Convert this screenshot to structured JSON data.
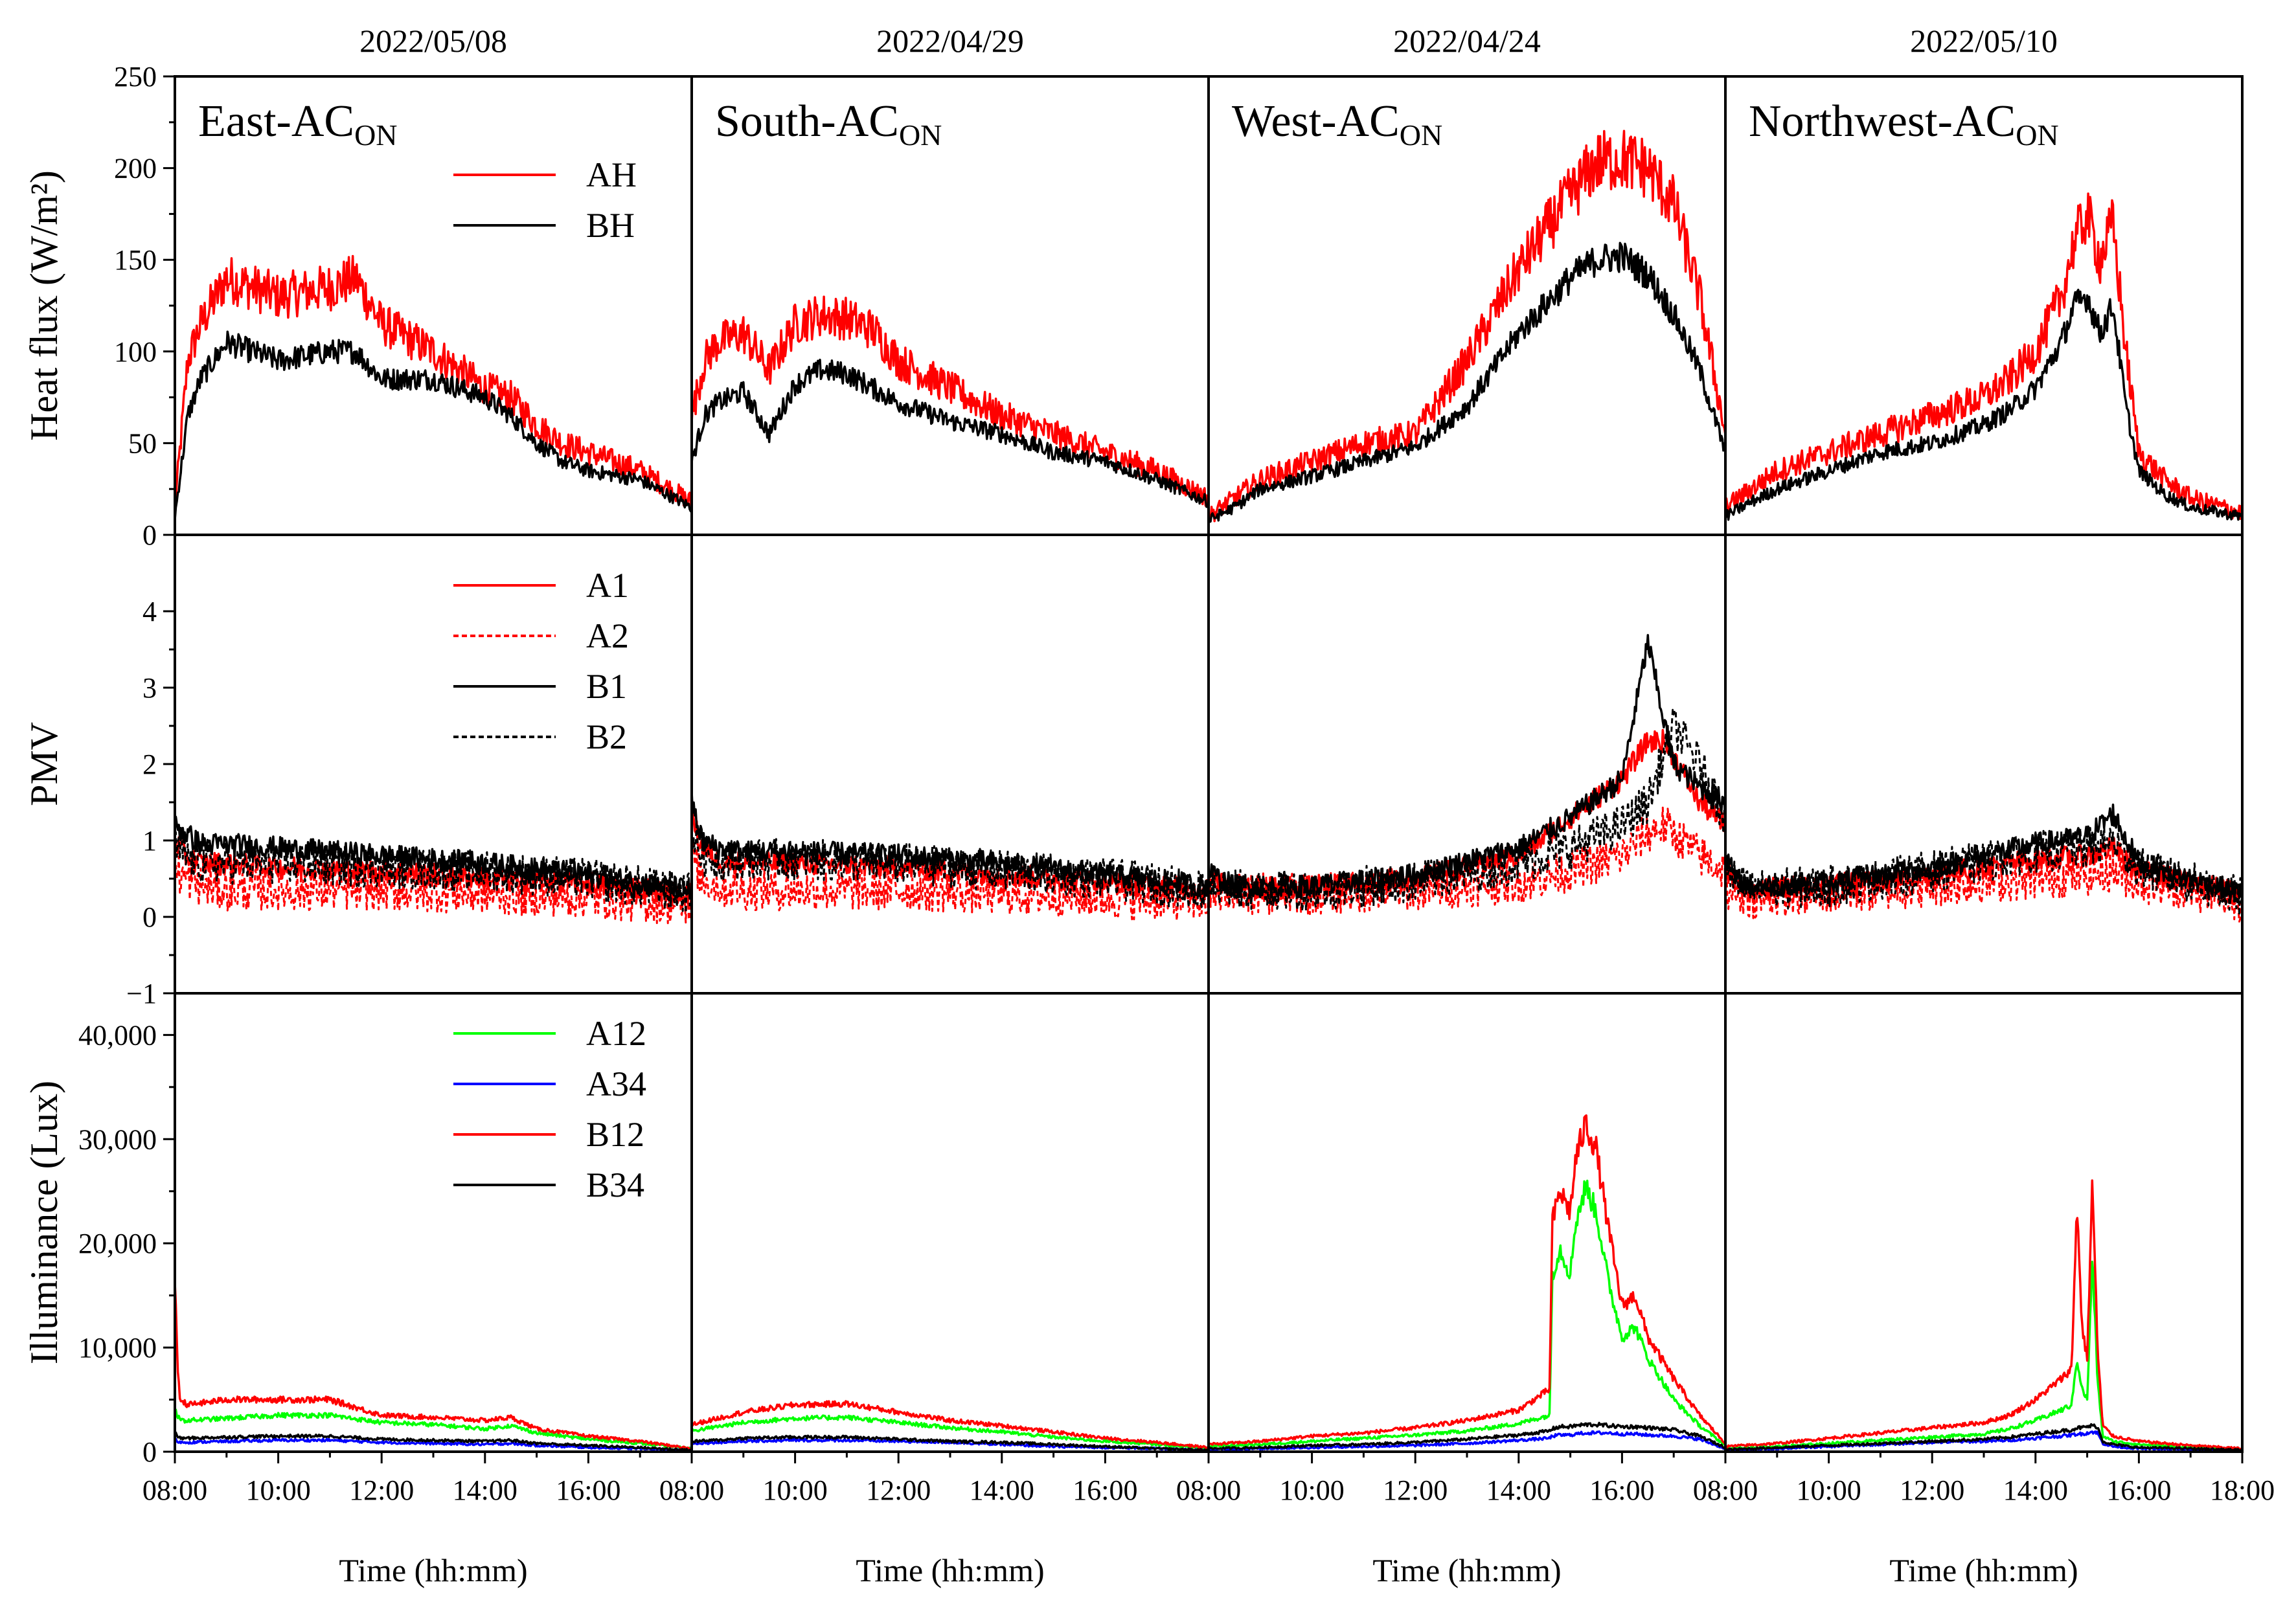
{
  "chart_data": {
    "type": "line",
    "columns": [
      {
        "date": "2022/05/08",
        "label_main": "East-AC",
        "label_sub": "ON"
      },
      {
        "date": "2022/04/29",
        "label_main": "South-AC",
        "label_sub": "ON"
      },
      {
        "date": "2022/04/24",
        "label_main": "West-AC",
        "label_sub": "ON"
      },
      {
        "date": "2022/05/10",
        "label_main": "Northwest-AC",
        "label_sub": "ON"
      }
    ],
    "xlabel": "Time (hh:mm)",
    "x_range_hours": [
      8,
      18
    ],
    "x_ticks": [
      "08:00",
      "10:00",
      "12:00",
      "14:00",
      "16:00"
    ],
    "x_last_tick": "18:00",
    "rows": [
      {
        "id": "heat_flux",
        "ylabel": "Heat flux (W/m²)",
        "ylim": [
          0,
          250
        ],
        "y_ticks": [
          0,
          50,
          100,
          150,
          200,
          250
        ],
        "y_tick_labels": [
          "0",
          "50",
          "100",
          "150",
          "200",
          "250"
        ],
        "legend": [
          {
            "name": "AH",
            "color": "#ff0000",
            "dash": "solid"
          },
          {
            "name": "BH",
            "color": "#000000",
            "dash": "solid"
          }
        ],
        "data": [
          {
            "x": [
              8.0,
              8.25,
              8.5,
              9.0,
              9.5,
              10.0,
              11.0,
              11.5,
              12.0,
              13.0,
              14.0,
              14.5,
              15.0,
              15.5,
              16.0,
              17.0,
              18.0
            ],
            "AH": [
              15,
              95,
              115,
              140,
              135,
              130,
              135,
              140,
              115,
              100,
              80,
              75,
              60,
              50,
              45,
              35,
              18
            ],
            "BH": [
              10,
              65,
              85,
              105,
              100,
              95,
              100,
              100,
              85,
              85,
              75,
              65,
              50,
              40,
              35,
              30,
              15
            ]
          },
          {
            "x": [
              8.0,
              8.25,
              8.5,
              9.0,
              9.5,
              10.0,
              10.5,
              11.0,
              11.5,
              12.0,
              13.0,
              14.0,
              15.0,
              16.0,
              17.0,
              18.0
            ],
            "AH": [
              65,
              95,
              105,
              110,
              90,
              115,
              120,
              118,
              112,
              95,
              80,
              65,
              55,
              45,
              35,
              20
            ],
            "BH": [
              40,
              65,
              72,
              78,
              55,
              82,
              90,
              88,
              80,
              72,
              62,
              55,
              45,
              40,
              30,
              18
            ]
          },
          {
            "x": [
              8.0,
              8.5,
              9.0,
              10.0,
              11.0,
              12.0,
              13.0,
              14.0,
              15.0,
              15.5,
              16.0,
              16.5,
              17.0,
              17.5,
              18.0
            ],
            "AH": [
              10,
              20,
              30,
              40,
              50,
              55,
              95,
              145,
              185,
              203,
              205,
              200,
              180,
              130,
              55
            ],
            "BH": [
              8,
              15,
              25,
              32,
              40,
              48,
              70,
              110,
              140,
              150,
              152,
              142,
              120,
              90,
              45
            ]
          },
          {
            "x": [
              8.0,
              8.5,
              9.0,
              10.0,
              11.0,
              12.0,
              13.0,
              13.5,
              14.0,
              14.5,
              14.75,
              15.0,
              15.25,
              15.5,
              15.75,
              16.0,
              16.5,
              17.0,
              18.0
            ],
            "AH": [
              15,
              25,
              35,
              45,
              55,
              65,
              75,
              85,
              100,
              130,
              160,
              175,
              150,
              170,
              100,
              45,
              30,
              20,
              12
            ],
            "BH": [
              10,
              18,
              25,
              35,
              45,
              50,
              60,
              68,
              80,
              105,
              125,
              130,
              110,
              125,
              70,
              35,
              22,
              15,
              10
            ]
          }
        ]
      },
      {
        "id": "pmv",
        "ylabel": "PMV",
        "ylim": [
          -1,
          5
        ],
        "y_ticks": [
          -1,
          0,
          1,
          2,
          3,
          4
        ],
        "y_tick_labels": [
          "−1",
          "0",
          "1",
          "2",
          "3",
          "4"
        ],
        "legend": [
          {
            "name": "A1",
            "color": "#ff0000",
            "dash": "solid"
          },
          {
            "name": "A2",
            "color": "#ff0000",
            "dash": "dotted"
          },
          {
            "name": "B1",
            "color": "#000000",
            "dash": "solid"
          },
          {
            "name": "B2",
            "color": "#000000",
            "dash": "dotted"
          }
        ],
        "data": [
          {
            "x": [
              8.0,
              8.2,
              8.5,
              9.0,
              10.0,
              12.0,
              14.0,
              16.0,
              18.0
            ],
            "A1": [
              1.0,
              0.8,
              0.7,
              0.7,
              0.65,
              0.6,
              0.5,
              0.45,
              0.3
            ],
            "A2": [
              0.6,
              0.5,
              0.4,
              0.35,
              0.35,
              0.35,
              0.3,
              0.25,
              0.15
            ],
            "B1": [
              1.2,
              1.1,
              0.95,
              0.95,
              0.9,
              0.8,
              0.7,
              0.55,
              0.35
            ],
            "B2": [
              0.9,
              0.8,
              0.7,
              0.7,
              0.7,
              0.65,
              0.6,
              0.5,
              0.3
            ]
          },
          {
            "x": [
              8.0,
              8.2,
              8.5,
              9.0,
              10.0,
              12.0,
              14.0,
              16.0,
              18.0
            ],
            "A1": [
              1.3,
              0.9,
              0.75,
              0.7,
              0.7,
              0.65,
              0.55,
              0.45,
              0.35
            ],
            "A2": [
              0.8,
              0.5,
              0.4,
              0.35,
              0.35,
              0.35,
              0.3,
              0.25,
              0.2
            ],
            "B1": [
              1.5,
              1.0,
              0.9,
              0.85,
              0.85,
              0.8,
              0.7,
              0.55,
              0.4
            ],
            "B2": [
              1.1,
              0.8,
              0.75,
              0.75,
              0.75,
              0.7,
              0.6,
              0.5,
              0.35
            ]
          },
          {
            "x": [
              8.0,
              8.2,
              8.5,
              10.0,
              12.0,
              14.0,
              15.0,
              16.0,
              16.5,
              16.8,
              17.0,
              17.5,
              18.0
            ],
            "A1": [
              0.5,
              0.45,
              0.35,
              0.4,
              0.5,
              0.8,
              1.3,
              1.8,
              2.3,
              2.3,
              2.1,
              1.5,
              1.2
            ],
            "A2": [
              0.4,
              0.35,
              0.3,
              0.3,
              0.35,
              0.45,
              0.6,
              0.8,
              1.1,
              1.2,
              1.1,
              0.8,
              0.6
            ],
            "B1": [
              0.6,
              0.5,
              0.4,
              0.4,
              0.55,
              0.9,
              1.3,
              1.8,
              3.6,
              2.6,
              2.0,
              1.7,
              1.5
            ],
            "B2": [
              0.5,
              0.4,
              0.35,
              0.35,
              0.45,
              0.7,
              0.9,
              1.2,
              1.5,
              2.1,
              2.5,
              2.0,
              1.3
            ]
          },
          {
            "x": [
              8.0,
              8.2,
              8.5,
              10.0,
              12.0,
              14.0,
              15.0,
              15.5,
              16.0,
              17.0,
              18.0
            ],
            "A1": [
              0.6,
              0.4,
              0.35,
              0.4,
              0.55,
              0.75,
              0.8,
              0.9,
              0.6,
              0.45,
              0.3
            ],
            "A2": [
              0.4,
              0.3,
              0.25,
              0.3,
              0.4,
              0.5,
              0.55,
              0.6,
              0.45,
              0.35,
              0.2
            ],
            "B1": [
              0.8,
              0.5,
              0.4,
              0.45,
              0.65,
              0.95,
              1.05,
              1.35,
              0.7,
              0.5,
              0.3
            ],
            "B2": [
              0.7,
              0.45,
              0.35,
              0.4,
              0.6,
              0.85,
              0.9,
              1.0,
              0.65,
              0.45,
              0.25
            ]
          }
        ]
      },
      {
        "id": "illuminance",
        "ylabel": "Illuminance (Lux)",
        "ylim": [
          0,
          44000
        ],
        "y_ticks": [
          0,
          10000,
          20000,
          30000,
          40000
        ],
        "y_tick_labels": [
          "0",
          "10,000",
          "20,000",
          "30,000",
          "40,000"
        ],
        "legend": [
          {
            "name": "A12",
            "color": "#00ff00",
            "dash": "solid"
          },
          {
            "name": "A34",
            "color": "#0000ff",
            "dash": "solid"
          },
          {
            "name": "B12",
            "color": "#ff0000",
            "dash": "solid"
          },
          {
            "name": "B34",
            "color": "#000000",
            "dash": "solid"
          }
        ],
        "data": [
          {
            "x": [
              8.0,
              8.05,
              8.1,
              8.25,
              9.0,
              10.0,
              11.0,
              12.0,
              13.0,
              14.0,
              14.5,
              15.0,
              16.0,
              17.0,
              18.0
            ],
            "A12": [
              4000,
              3500,
              3000,
              3000,
              3200,
              3500,
              3500,
              2800,
              2600,
              2200,
              2500,
              1800,
              1200,
              800,
              300
            ],
            "A34": [
              1200,
              1000,
              900,
              900,
              1000,
              1100,
              1100,
              900,
              800,
              700,
              800,
              600,
              400,
              300,
              100
            ],
            "B12": [
              17000,
              8000,
              5000,
              4500,
              5000,
              5000,
              5000,
              3500,
              3300,
              3000,
              3300,
              2200,
              1500,
              1000,
              300
            ],
            "B34": [
              1800,
              1500,
              1300,
              1300,
              1400,
              1500,
              1500,
              1200,
              1100,
              1000,
              1100,
              800,
              600,
              400,
              150
            ]
          },
          {
            "x": [
              8.0,
              8.5,
              9.0,
              10.0,
              11.0,
              12.0,
              13.0,
              14.0,
              15.0,
              16.0,
              17.0,
              18.0
            ],
            "A12": [
              2000,
              2400,
              2800,
              3200,
              3300,
              2800,
              2300,
              1900,
              1400,
              1000,
              700,
              300
            ],
            "A34": [
              800,
              900,
              1000,
              1100,
              1100,
              1000,
              900,
              700,
              500,
              400,
              300,
              100
            ],
            "B12": [
              2600,
              3200,
              3800,
              4500,
              4600,
              3800,
              3000,
              2500,
              1900,
              1300,
              900,
              400
            ],
            "B34": [
              1000,
              1100,
              1300,
              1400,
              1400,
              1200,
              1000,
              900,
              700,
              500,
              300,
              150
            ]
          },
          {
            "x": [
              8.0,
              9.0,
              10.0,
              11.0,
              12.0,
              13.0,
              14.0,
              14.6,
              14.65,
              14.8,
              15.0,
              15.1,
              15.3,
              15.5,
              15.75,
              16.0,
              16.25,
              16.5,
              17.0,
              17.5,
              18.0
            ],
            "A12": [
              500,
              700,
              1000,
              1300,
              1600,
              2000,
              2700,
              3500,
              17000,
              19500,
              17000,
              22000,
              25500,
              23000,
              16000,
              11000,
              12000,
              9000,
              5000,
              2500,
              600
            ],
            "A34": [
              200,
              300,
              400,
              500,
              600,
              800,
              1100,
              1300,
              1500,
              1600,
              1600,
              1700,
              1800,
              1800,
              1800,
              1700,
              1700,
              1600,
              1500,
              1200,
              300
            ],
            "B12": [
              700,
              1000,
              1500,
              1800,
              2300,
              3000,
              4000,
              6000,
              22000,
              25000,
              23000,
              28000,
              31500,
              29000,
              21000,
              14000,
              15000,
              11000,
              7000,
              3500,
              800
            ],
            "B34": [
              300,
              400,
              600,
              700,
              900,
              1200,
              1600,
              2000,
              2200,
              2400,
              2400,
              2500,
              2600,
              2600,
              2500,
              2400,
              2400,
              2300,
              2100,
              1500,
              400
            ]
          },
          {
            "x": [
              8.0,
              9.0,
              10.0,
              11.0,
              12.0,
              13.0,
              13.5,
              14.0,
              14.5,
              14.7,
              14.8,
              14.9,
              15.0,
              15.1,
              15.2,
              15.3,
              15.5,
              16.0,
              17.0,
              18.0
            ],
            "A12": [
              300,
              500,
              800,
              1100,
              1400,
              1700,
              2200,
              3000,
              4000,
              4500,
              9000,
              6000,
              5000,
              18500,
              7000,
              1500,
              1000,
              700,
              400,
              200
            ],
            "A34": [
              150,
              300,
              500,
              700,
              900,
              1000,
              1100,
              1300,
              1500,
              1600,
              1700,
              1700,
              1800,
              1900,
              1800,
              800,
              500,
              300,
              200,
              100
            ],
            "B12": [
              500,
              800,
              1300,
              1800,
              2300,
              2800,
              3500,
              5000,
              7000,
              8000,
              24000,
              12000,
              9000,
              26000,
              10000,
              2500,
              1500,
              1000,
              600,
              300
            ],
            "B34": [
              200,
              400,
              600,
              800,
              1000,
              1200,
              1400,
              1700,
              2000,
              2100,
              2300,
              2300,
              2400,
              2500,
              2400,
              1000,
              700,
              400,
              300,
              150
            ]
          }
        ]
      }
    ]
  }
}
